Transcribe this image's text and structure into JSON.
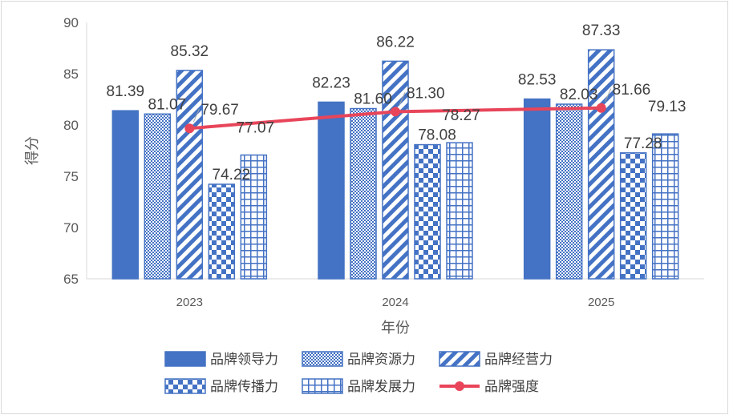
{
  "chart_data": {
    "type": "bar",
    "categories": [
      "2023",
      "2024",
      "2025"
    ],
    "series": [
      {
        "name": "品牌领导力",
        "values": [
          81.39,
          82.23,
          82.53
        ],
        "pattern": "solid"
      },
      {
        "name": "品牌资源力",
        "values": [
          81.07,
          81.6,
          82.03
        ],
        "pattern": "dots"
      },
      {
        "name": "品牌经营力",
        "values": [
          85.32,
          86.22,
          87.33
        ],
        "pattern": "diagonal"
      },
      {
        "name": "品牌传播力",
        "values": [
          74.22,
          78.08,
          77.28
        ],
        "pattern": "checker"
      },
      {
        "name": "品牌发展力",
        "values": [
          77.07,
          78.27,
          79.13
        ],
        "pattern": "grid"
      }
    ],
    "line_series": {
      "name": "品牌强度",
      "values": [
        79.67,
        81.3,
        81.66
      ],
      "color": "#e8455a"
    },
    "value_labels": {
      "bars": [
        [
          "81.39",
          "82.23",
          "82.53"
        ],
        [
          "81.07",
          "81.60",
          "82.03"
        ],
        [
          "85.32",
          "86.22",
          "87.33"
        ],
        [
          "74.22",
          "78.08",
          "77.28"
        ],
        [
          "77.07",
          "78.27",
          "79.13"
        ]
      ],
      "line": [
        "79.67",
        "81.30",
        "81.66"
      ]
    },
    "xlabel": "年份",
    "ylabel": "得分",
    "ylim": [
      65,
      90
    ],
    "yticks": [
      "65",
      "70",
      "75",
      "80",
      "85",
      "90"
    ],
    "grid": false,
    "legend_position": "bottom",
    "colors": {
      "bar": "#4472c4",
      "line": "#e8455a"
    }
  }
}
